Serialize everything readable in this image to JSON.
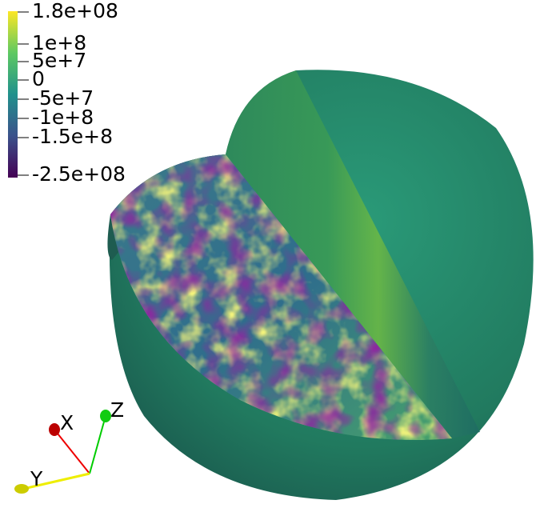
{
  "colorbar": {
    "labels": [
      "1.8e+08",
      "1e+8",
      "5e+7",
      "0",
      "-5e+7",
      "-1e+8",
      "-1.5e+8",
      "-2.5e+08"
    ]
  },
  "orientation_axes": {
    "x": "X",
    "y": "Y",
    "z": "Z"
  }
}
